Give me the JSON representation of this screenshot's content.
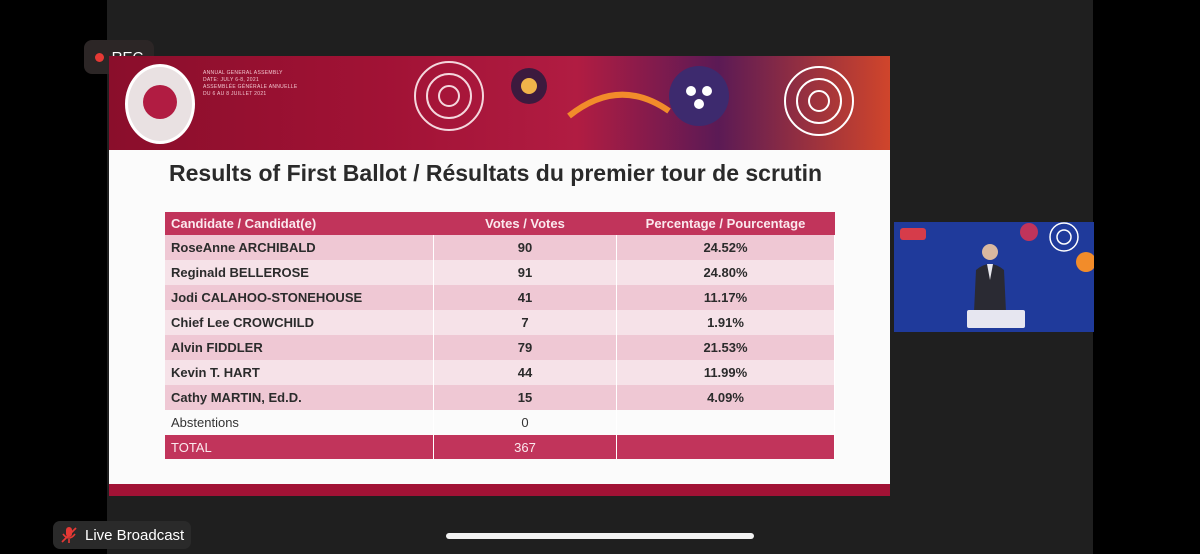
{
  "recording": {
    "label": "REC"
  },
  "slide": {
    "event_lines": [
      "ANNUAL GENERAL ASSEMBLY",
      "DATE: JULY 6-8, 2021",
      "ASSEMBLÉE GÉNÉRALE ANNUELLE",
      "DU 6 AU 8 JUILLET 2021"
    ],
    "title": "Results of First Ballot / Résultats du premier tour de scrutin",
    "table": {
      "headers": [
        "Candidate / Candidat(e)",
        "Votes / Votes",
        "Percentage / Pourcentage"
      ],
      "rows": [
        [
          "RoseAnne ARCHIBALD",
          "90",
          "24.52%"
        ],
        [
          "Reginald BELLEROSE",
          "91",
          "24.80%"
        ],
        [
          "Jodi CALAHOO-STONEHOUSE",
          "41",
          "11.17%"
        ],
        [
          "Chief Lee CROWCHILD",
          "7",
          "1.91%"
        ],
        [
          "Alvin FIDDLER",
          "79",
          "21.53%"
        ],
        [
          "Kevin T. HART",
          "44",
          "11.99%"
        ],
        [
          "Cathy MARTIN, Ed.D.",
          "15",
          "4.09%"
        ],
        [
          "Abstentions",
          "0",
          ""
        ]
      ],
      "total": [
        "TOTAL",
        "367",
        ""
      ]
    }
  },
  "broadcast": {
    "label": "Live Broadcast"
  },
  "colors": {
    "accent": "#c1345b",
    "banner": "#a11235",
    "rec_dot": "#e53935",
    "speaker_bg": "#1f3a9b"
  }
}
